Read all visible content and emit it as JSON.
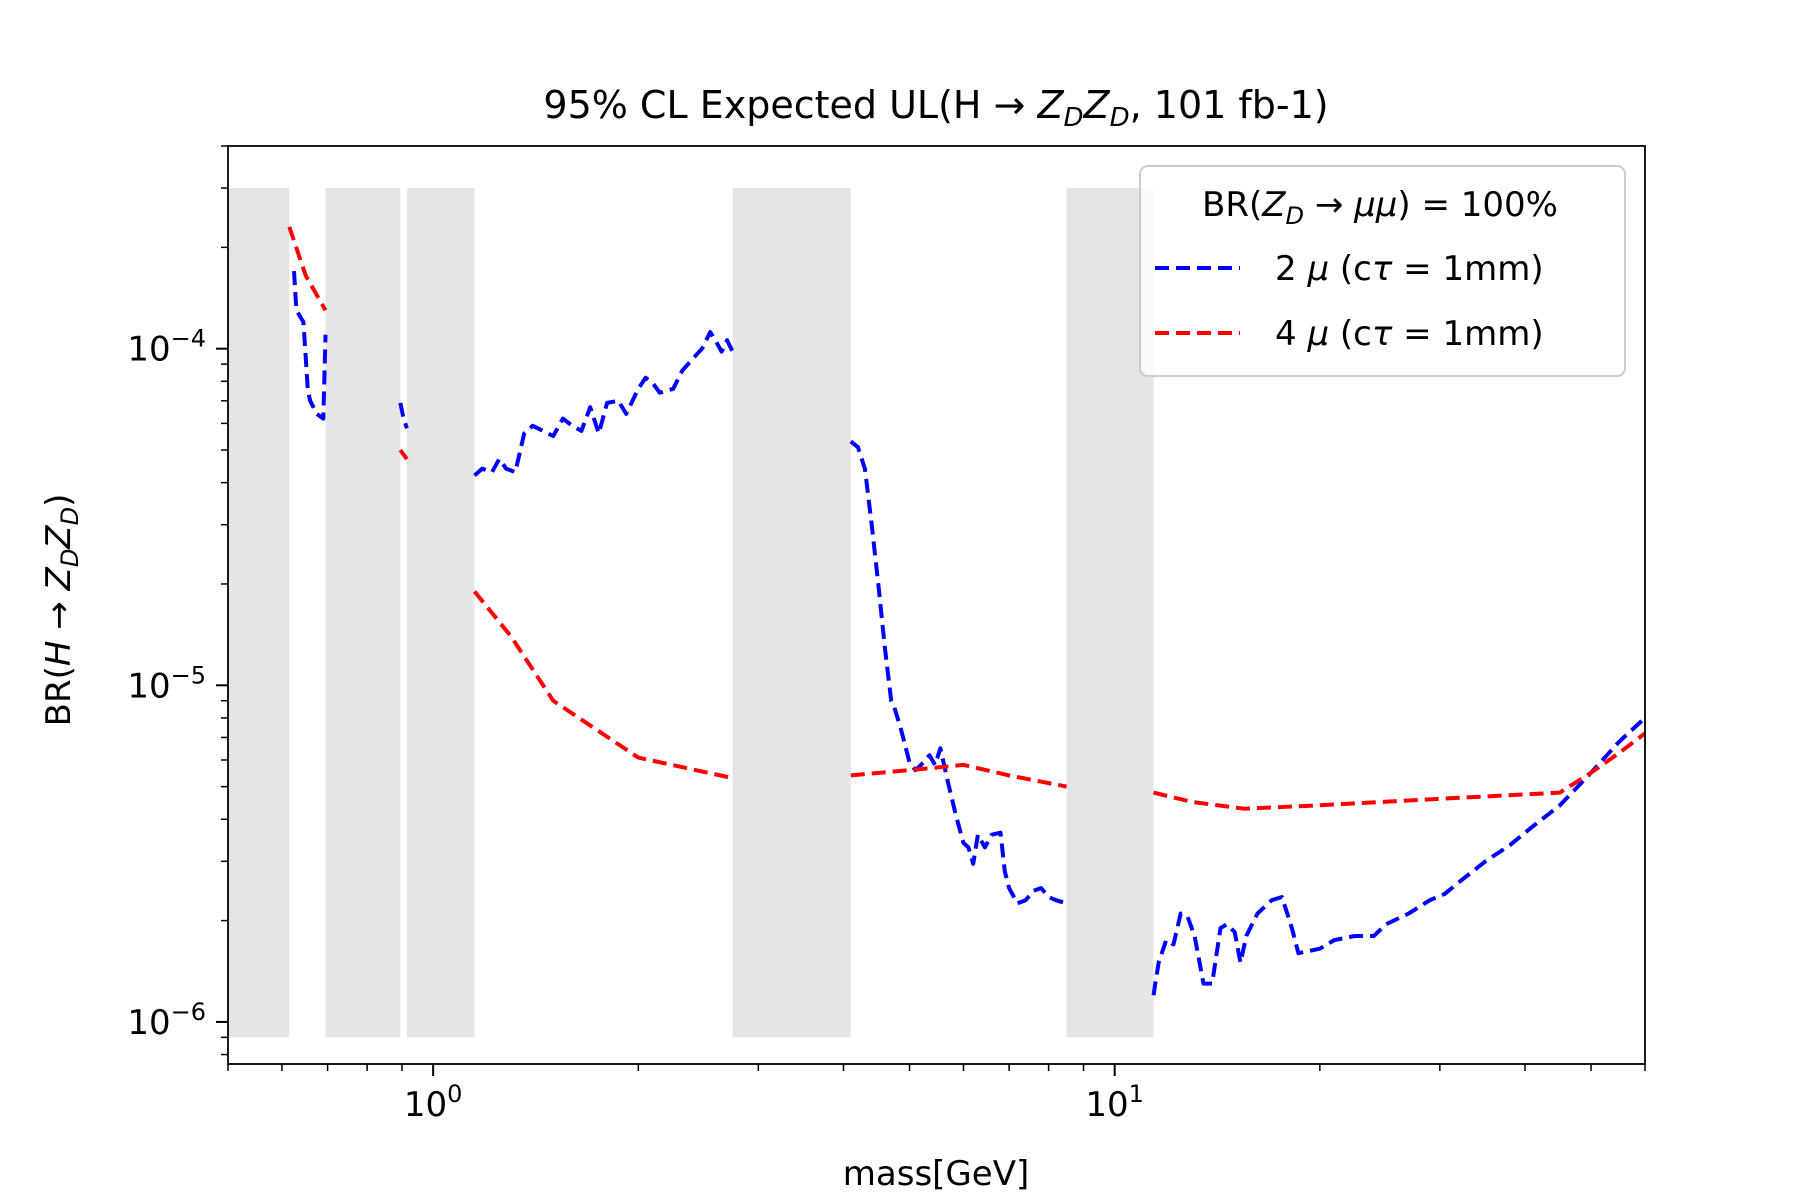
{
  "chart_data": {
    "type": "line",
    "title": "95% CL Expected UL(H → Z_DZ_D, 101 fb-1)",
    "xlabel": "mass[GeV]",
    "ylabel": "BR(H → Z_DZ_D)",
    "xscale": "log",
    "yscale": "log",
    "xlim": [
      0.5,
      60
    ],
    "ylim": [
      7.5e-07,
      0.0004
    ],
    "grid": false,
    "x_ticks": [
      {
        "value": 1,
        "base": "10",
        "exp": "0"
      },
      {
        "value": 10,
        "base": "10",
        "exp": "1"
      }
    ],
    "y_ticks": [
      {
        "value": 1e-06,
        "base": "10",
        "exp": "−6"
      },
      {
        "value": 1e-05,
        "base": "10",
        "exp": "−5"
      },
      {
        "value": 0.0001,
        "base": "10",
        "exp": "−4"
      }
    ],
    "legend": {
      "location": "top-right",
      "title": "BR(Z_D → μμ) = 100%",
      "entries": [
        "2 μ (cτ = 1mm)",
        "4 μ (cτ = 1mm)"
      ]
    },
    "excluded_bands": [
      {
        "x0": 0.5,
        "x1": 0.615,
        "y0": 9e-07,
        "y1": 0.0003
      },
      {
        "x0": 0.695,
        "x1": 0.895,
        "y0": 9e-07,
        "y1": 0.0003
      },
      {
        "x0": 0.915,
        "x1": 1.15,
        "y0": 9e-07,
        "y1": 0.0003
      },
      {
        "x0": 2.75,
        "x1": 4.1,
        "y0": 9e-07,
        "y1": 0.0003
      },
      {
        "x0": 8.5,
        "x1": 11.4,
        "y0": 9e-07,
        "y1": 0.0003
      }
    ],
    "band_color": "#e5e5e5",
    "series": [
      {
        "name": "2 μ (cτ = 1mm)",
        "color": "#0000ff",
        "style": "dashed",
        "segments": [
          [
            [
              0.625,
              0.00017
            ],
            [
              0.63,
              0.00013
            ],
            [
              0.645,
              0.00012
            ],
            [
              0.655,
              7.5e-05
            ],
            [
              0.66,
              7e-05
            ],
            [
              0.675,
              6.4e-05
            ],
            [
              0.69,
              6.2e-05
            ],
            [
              0.695,
              0.00011
            ]
          ],
          [
            [
              0.895,
              6.9e-05
            ],
            [
              0.905,
              6.2e-05
            ],
            [
              0.915,
              5.8e-05
            ]
          ],
          [
            [
              1.15,
              4.2e-05
            ],
            [
              1.18,
              4.4e-05
            ],
            [
              1.22,
              4.3e-05
            ],
            [
              1.25,
              4.7e-05
            ],
            [
              1.28,
              4.4e-05
            ],
            [
              1.32,
              4.3e-05
            ],
            [
              1.36,
              5.6e-05
            ],
            [
              1.4,
              5.9e-05
            ],
            [
              1.45,
              5.7e-05
            ],
            [
              1.5,
              5.5e-05
            ],
            [
              1.55,
              6.2e-05
            ],
            [
              1.6,
              5.9e-05
            ],
            [
              1.65,
              5.7e-05
            ],
            [
              1.7,
              6.7e-05
            ],
            [
              1.75,
              5.6e-05
            ],
            [
              1.8,
              6.9e-05
            ],
            [
              1.87,
              7e-05
            ],
            [
              1.92,
              6.4e-05
            ],
            [
              2.0,
              7.6e-05
            ],
            [
              2.05,
              8.2e-05
            ],
            [
              2.1,
              7.9e-05
            ],
            [
              2.15,
              7.4e-05
            ],
            [
              2.25,
              7.6e-05
            ],
            [
              2.32,
              8.6e-05
            ],
            [
              2.4,
              9.3e-05
            ],
            [
              2.48,
              0.0001
            ],
            [
              2.55,
              0.000112
            ],
            [
              2.6,
              0.000105
            ],
            [
              2.65,
              9.8e-05
            ],
            [
              2.7,
              0.000106
            ],
            [
              2.75,
              9.8e-05
            ]
          ],
          [
            [
              4.1,
              5.3e-05
            ],
            [
              4.2,
              5.1e-05
            ],
            [
              4.3,
              4.4e-05
            ],
            [
              4.4,
              3e-05
            ],
            [
              4.5,
              2e-05
            ],
            [
              4.6,
              1.3e-05
            ],
            [
              4.7,
              9e-06
            ],
            [
              4.75,
              8.6e-06
            ],
            [
              4.85,
              7.5e-06
            ],
            [
              5.0,
              5.9e-06
            ],
            [
              5.1,
              5.6e-06
            ],
            [
              5.2,
              5.8e-06
            ],
            [
              5.35,
              6.2e-06
            ],
            [
              5.45,
              5.8e-06
            ],
            [
              5.55,
              6.5e-06
            ],
            [
              5.7,
              5.1e-06
            ],
            [
              5.85,
              4.1e-06
            ],
            [
              6.0,
              3.4e-06
            ],
            [
              6.1,
              3.3e-06
            ],
            [
              6.2,
              2.95e-06
            ],
            [
              6.3,
              3.6e-06
            ],
            [
              6.45,
              3.3e-06
            ],
            [
              6.6,
              3.6e-06
            ],
            [
              6.8,
              3.65e-06
            ],
            [
              6.9,
              2.8e-06
            ],
            [
              7.0,
              2.5e-06
            ],
            [
              7.2,
              2.25e-06
            ],
            [
              7.4,
              2.3e-06
            ],
            [
              7.6,
              2.45e-06
            ],
            [
              7.8,
              2.5e-06
            ],
            [
              8.0,
              2.35e-06
            ],
            [
              8.2,
              2.3e-06
            ],
            [
              8.5,
              2.25e-06
            ]
          ],
          [
            [
              11.4,
              1.2e-06
            ],
            [
              11.6,
              1.5e-06
            ],
            [
              11.9,
              1.75e-06
            ],
            [
              12.2,
              1.7e-06
            ],
            [
              12.5,
              2.1e-06
            ],
            [
              12.8,
              2.05e-06
            ],
            [
              13.1,
              1.8e-06
            ],
            [
              13.5,
              1.3e-06
            ],
            [
              13.9,
              1.3e-06
            ],
            [
              14.3,
              1.9e-06
            ],
            [
              14.6,
              1.95e-06
            ],
            [
              15.0,
              1.85e-06
            ],
            [
              15.3,
              1.5e-06
            ],
            [
              15.6,
              1.8e-06
            ],
            [
              16.2,
              2.1e-06
            ],
            [
              17.0,
              2.3e-06
            ],
            [
              17.6,
              2.35e-06
            ],
            [
              18.2,
              1.9e-06
            ],
            [
              18.6,
              1.6e-06
            ],
            [
              20.0,
              1.65e-06
            ],
            [
              21.0,
              1.75e-06
            ],
            [
              22.5,
              1.8e-06
            ],
            [
              24.0,
              1.8e-06
            ],
            [
              25.0,
              1.95e-06
            ],
            [
              27.0,
              2.1e-06
            ],
            [
              29.0,
              2.3e-06
            ],
            [
              30.5,
              2.4e-06
            ],
            [
              32.0,
              2.6e-06
            ],
            [
              35.0,
              3e-06
            ],
            [
              38.0,
              3.35e-06
            ],
            [
              41.0,
              3.8e-06
            ],
            [
              45.0,
              4.4e-06
            ],
            [
              50.0,
              5.5e-06
            ],
            [
              55.0,
              6.8e-06
            ],
            [
              60.0,
              8e-06
            ]
          ]
        ]
      },
      {
        "name": "4 μ (cτ = 1mm)",
        "color": "#ff0000",
        "style": "dashed",
        "segments": [
          [
            [
              0.615,
              0.00023
            ],
            [
              0.65,
              0.000165
            ],
            [
              0.695,
              0.00013
            ]
          ],
          [
            [
              0.895,
              5e-05
            ],
            [
              0.915,
              4.7e-05
            ]
          ],
          [
            [
              1.15,
              1.9e-05
            ],
            [
              1.3,
              1.4e-05
            ],
            [
              1.5,
              9e-06
            ],
            [
              2.0,
              6.1e-06
            ],
            [
              2.75,
              5.3e-06
            ]
          ],
          [
            [
              4.1,
              5.4e-06
            ],
            [
              5.0,
              5.6e-06
            ],
            [
              6.0,
              5.8e-06
            ],
            [
              7.0,
              5.4e-06
            ],
            [
              8.5,
              5e-06
            ]
          ],
          [
            [
              11.4,
              4.8e-06
            ],
            [
              13.0,
              4.5e-06
            ],
            [
              15.5,
              4.3e-06
            ],
            [
              20.0,
              4.4e-06
            ],
            [
              30.0,
              4.6e-06
            ],
            [
              45.0,
              4.8e-06
            ],
            [
              50.0,
              5.5e-06
            ],
            [
              55.0,
              6.3e-06
            ],
            [
              60.0,
              7.2e-06
            ]
          ]
        ]
      }
    ]
  }
}
